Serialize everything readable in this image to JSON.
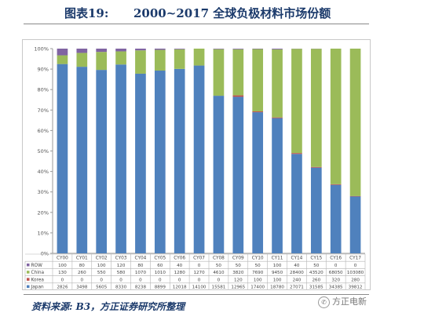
{
  "figure": {
    "label": "图表19:",
    "title": "2000~2017 全球负极材料市场份额",
    "source": "资料来源:  B3，方正证券研究所整理",
    "watermark": "方正电新",
    "watermark_icon": "wechat-icon"
  },
  "chart_data": {
    "type": "bar",
    "stacked": "percent",
    "title": "",
    "xlabel": "",
    "ylabel": "",
    "ylim": [
      0,
      100
    ],
    "y_ticks": [
      "0%",
      "10%",
      "20%",
      "30%",
      "40%",
      "50%",
      "60%",
      "70%",
      "80%",
      "90%",
      "100%"
    ],
    "grid": false,
    "legend": "data-table",
    "categories": [
      "CY00",
      "CY01",
      "CY02",
      "CY03",
      "CY04",
      "CY05",
      "CY06",
      "CY07",
      "CY08",
      "CY09",
      "CY10",
      "CY11",
      "CY14",
      "CY15",
      "CY16",
      "CY17"
    ],
    "series": [
      {
        "name": "Japan",
        "color": "#4f81bd",
        "values": [
          2826,
          3498,
          5605,
          8330,
          8238,
          8899,
          12018,
          14100,
          15581,
          12965,
          17400,
          18780,
          27071,
          31585,
          34385,
          39812
        ]
      },
      {
        "name": "Korea",
        "color": "#c0504d",
        "values": [
          0,
          0,
          0,
          0,
          0,
          0,
          0,
          0,
          0,
          120,
          100,
          100,
          240,
          260,
          320,
          280
        ]
      },
      {
        "name": "China",
        "color": "#9bbb59",
        "values": [
          130,
          260,
          550,
          580,
          1070,
          1010,
          1280,
          1270,
          4610,
          3820,
          7690,
          9450,
          28400,
          43520,
          68050,
          103080
        ]
      },
      {
        "name": "ROW",
        "color": "#8064a2",
        "values": [
          100,
          80,
          100,
          120,
          80,
          60,
          40,
          0,
          50,
          50,
          50,
          100,
          40,
          50,
          0,
          0
        ]
      }
    ]
  }
}
